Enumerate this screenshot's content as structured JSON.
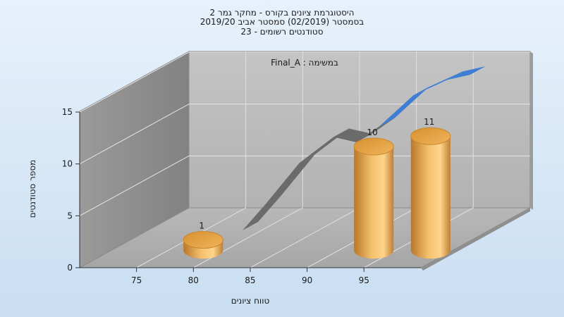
{
  "chart_data": {
    "type": "bar",
    "title_lines": [
      "היסטוגרמת ציונים בקורס - מחקר גמר 2",
      "בסמסטר  (02/2019)  סמסטר אביב 2019/20",
      "סטודנטים רשומים - 23"
    ],
    "annotation": "במשימה : Final_A",
    "xlabel": "טווח ציונים",
    "ylabel": "מספר סטודנטים",
    "x_ticks": [
      75,
      80,
      85,
      90,
      95
    ],
    "y_ticks": [
      0,
      5,
      10,
      15
    ],
    "ylim": [
      0,
      15
    ],
    "grid": true,
    "bars": {
      "x": [
        77.5,
        92.5,
        97.5
      ],
      "values": [
        1,
        10,
        11
      ],
      "labels": [
        "1",
        "10",
        "11"
      ],
      "color": "#e8a847"
    },
    "curve": {
      "x": [
        80,
        82,
        85,
        88,
        90,
        92,
        95,
        98,
        100
      ],
      "values": [
        1,
        3.5,
        7.5,
        10,
        9.5,
        11,
        14,
        15.5,
        16
      ],
      "color_low": "#6b6b6b",
      "color_high": "#3f7ed4"
    }
  }
}
